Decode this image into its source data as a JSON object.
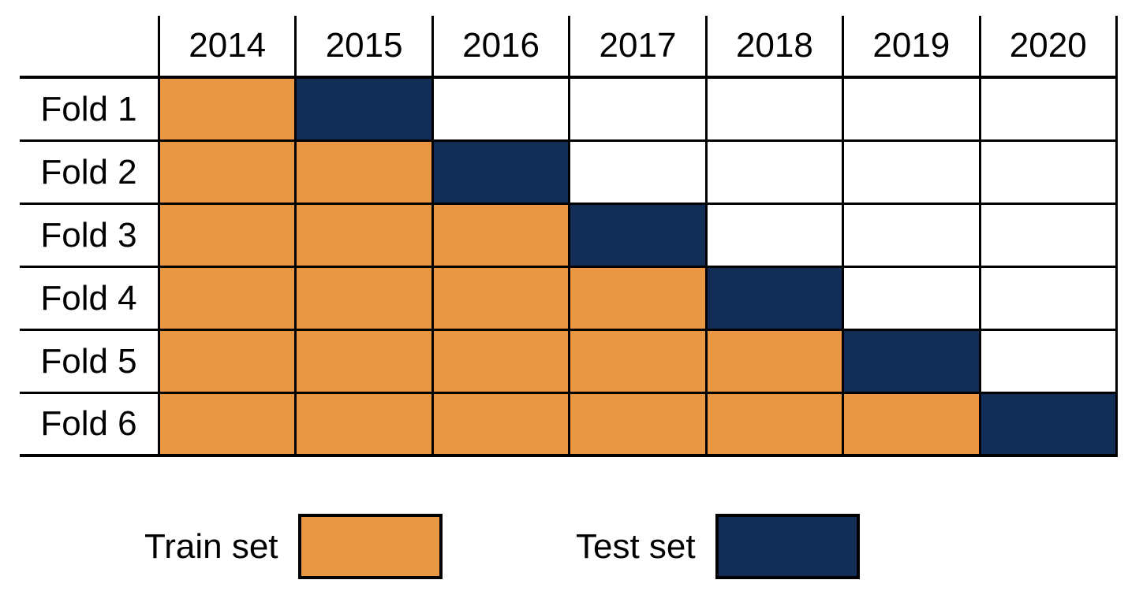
{
  "table": {
    "year_headers": [
      "2014",
      "2015",
      "2016",
      "2017",
      "2018",
      "2019",
      "2020"
    ],
    "folds": [
      {
        "label": "Fold 1",
        "cells": [
          "train",
          "test",
          "empty",
          "empty",
          "empty",
          "empty",
          "empty"
        ]
      },
      {
        "label": "Fold 2",
        "cells": [
          "train",
          "train",
          "test",
          "empty",
          "empty",
          "empty",
          "empty"
        ]
      },
      {
        "label": "Fold 3",
        "cells": [
          "train",
          "train",
          "train",
          "test",
          "empty",
          "empty",
          "empty"
        ]
      },
      {
        "label": "Fold 4",
        "cells": [
          "train",
          "train",
          "train",
          "train",
          "test",
          "empty",
          "empty"
        ]
      },
      {
        "label": "Fold 5",
        "cells": [
          "train",
          "train",
          "train",
          "train",
          "train",
          "test",
          "empty"
        ]
      },
      {
        "label": "Fold 6",
        "cells": [
          "train",
          "train",
          "train",
          "train",
          "train",
          "train",
          "test"
        ]
      }
    ]
  },
  "legend": {
    "train_label": "Train set",
    "test_label": "Test set"
  },
  "colors": {
    "train": "#EA9743",
    "test": "#132E56",
    "border": "#000000",
    "background": "#FFFFFF",
    "text": "#000000"
  }
}
